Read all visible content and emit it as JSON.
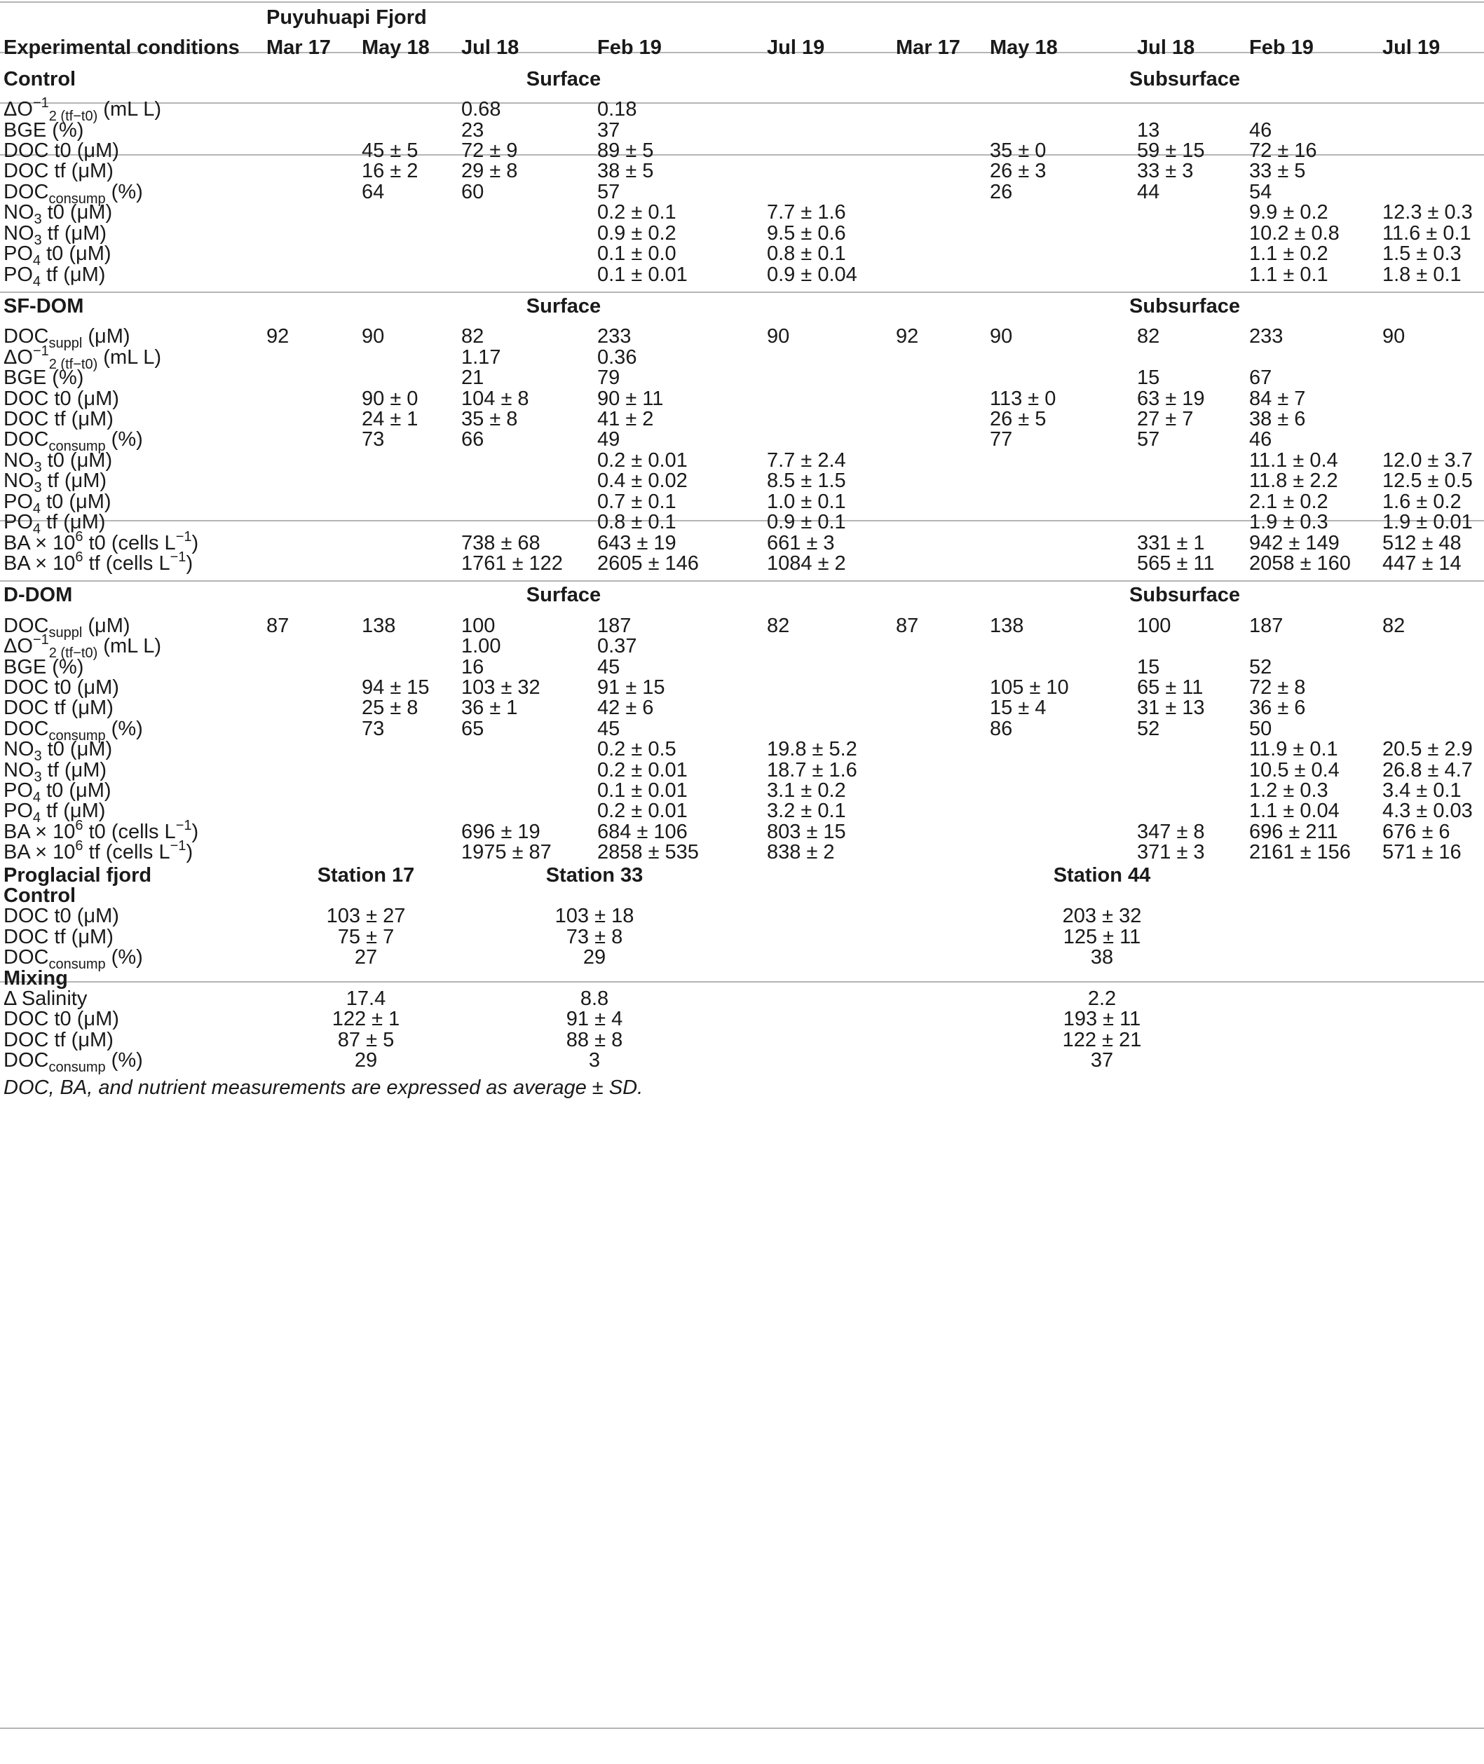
{
  "table": {
    "title": "Puyuhuapi Fjord",
    "header_label": "Experimental conditions",
    "months": [
      "Mar 17",
      "May 18",
      "Jul 18",
      "Feb 19",
      "Jul 19",
      "Mar 17",
      "May 18",
      "Jul 18",
      "Feb 19",
      "Jul 19"
    ],
    "layer_surface": "Surface",
    "layer_subsurface": "Subsurface",
    "sections": [
      {
        "name": "Control",
        "rows": [
          {
            "label": "ΔO",
            "sub": "2 (tf−t0)",
            "after": " (mL L",
            "sup": "−1",
            "tail": ")",
            "cells": [
              "",
              "",
              "0.68",
              "0.18",
              "",
              "",
              "",
              "",
              "",
              ""
            ]
          },
          {
            "label": "BGE (%)",
            "cells": [
              "",
              "",
              "23",
              "37",
              "",
              "",
              "",
              "13",
              "46",
              ""
            ]
          },
          {
            "label": "DOC t0 (μM)",
            "cells": [
              "",
              "45 ± 5",
              "72 ± 9",
              "89 ± 5",
              "",
              "",
              "35 ± 0",
              "59 ± 15",
              "72 ± 16",
              ""
            ]
          },
          {
            "label": "DOC tf (μM)",
            "cells": [
              "",
              "16 ± 2",
              "29 ± 8",
              "38 ± 5",
              "",
              "",
              "26 ± 3",
              "33 ± 3",
              "33 ± 5",
              ""
            ]
          },
          {
            "label": "DOC",
            "sub": "consump",
            "after": " (%)",
            "cells": [
              "",
              "64",
              "60",
              "57",
              "",
              "",
              "26",
              "44",
              "54",
              ""
            ]
          },
          {
            "label": "NO",
            "sub": "3",
            "after": " t0 (μM)",
            "cells": [
              "",
              "",
              "",
              "0.2 ± 0.1",
              "7.7 ± 1.6",
              "",
              "",
              "",
              "9.9 ± 0.2",
              "12.3 ± 0.3"
            ]
          },
          {
            "label": "NO",
            "sub": "3",
            "after": " tf (μM)",
            "cells": [
              "",
              "",
              "",
              "0.9 ± 0.2",
              "9.5 ± 0.6",
              "",
              "",
              "",
              "10.2 ± 0.8",
              "11.6 ± 0.1"
            ]
          },
          {
            "label": "PO",
            "sub": "4",
            "after": " t0 (μM)",
            "cells": [
              "",
              "",
              "",
              "0.1 ± 0.0",
              "0.8 ± 0.1",
              "",
              "",
              "",
              "1.1 ± 0.2",
              "1.5 ± 0.3"
            ]
          },
          {
            "label": "PO",
            "sub": "4",
            "after": " tf (μM)",
            "cells": [
              "",
              "",
              "",
              "0.1 ± 0.01",
              "0.9 ± 0.04",
              "",
              "",
              "",
              "1.1 ± 0.1",
              "1.8 ± 0.1"
            ]
          }
        ]
      },
      {
        "name": "SF-DOM",
        "rows": [
          {
            "label": "DOC",
            "sub": "suppl",
            "after": " (μM)",
            "cells": [
              "92",
              "90",
              "82",
              "233",
              "90",
              "92",
              "90",
              "82",
              "233",
              "90"
            ]
          },
          {
            "label": "ΔO",
            "sub": "2 (tf−t0)",
            "after": " (mL L",
            "sup": "−1",
            "tail": ")",
            "cells": [
              "",
              "",
              "1.17",
              "0.36",
              "",
              "",
              "",
              "",
              "",
              ""
            ]
          },
          {
            "label": "BGE (%)",
            "cells": [
              "",
              "",
              "21",
              "79",
              "",
              "",
              "",
              "15",
              "67",
              ""
            ]
          },
          {
            "label": "DOC t0 (μM)",
            "cells": [
              "",
              "90 ± 0",
              "104 ± 8",
              "90 ± 11",
              "",
              "",
              "113 ± 0",
              "63 ± 19",
              "84 ± 7",
              ""
            ]
          },
          {
            "label": "DOC tf (μM)",
            "cells": [
              "",
              "24 ± 1",
              "35 ± 8",
              "41 ± 2",
              "",
              "",
              "26 ± 5",
              "27 ± 7",
              "38 ± 6",
              ""
            ]
          },
          {
            "label": "DOC",
            "sub": "consump",
            "after": " (%)",
            "cells": [
              "",
              "73",
              "66",
              "49",
              "",
              "",
              "77",
              "57",
              "46",
              ""
            ]
          },
          {
            "label": "NO",
            "sub": "3",
            "after": " t0 (μM)",
            "cells": [
              "",
              "",
              "",
              "0.2 ± 0.01",
              "7.7 ± 2.4",
              "",
              "",
              "",
              "11.1 ± 0.4",
              "12.0 ± 3.7"
            ]
          },
          {
            "label": "NO",
            "sub": "3",
            "after": " tf (μM)",
            "cells": [
              "",
              "",
              "",
              "0.4 ± 0.02",
              "8.5 ± 1.5",
              "",
              "",
              "",
              "11.8 ± 2.2",
              "12.5 ± 0.5"
            ]
          },
          {
            "label": "PO",
            "sub": "4",
            "after": " t0 (μM)",
            "cells": [
              "",
              "",
              "",
              "0.7 ± 0.1",
              "1.0 ± 0.1",
              "",
              "",
              "",
              "2.1 ± 0.2",
              "1.6 ± 0.2"
            ]
          },
          {
            "label": "PO",
            "sub": "4",
            "after": " tf (μM)",
            "cells": [
              "",
              "",
              "",
              "0.8 ± 0.1",
              "0.9 ± 0.1",
              "",
              "",
              "",
              "1.9 ± 0.3",
              "1.9 ± 0.01"
            ]
          },
          {
            "label": "BA × 10",
            "sup": "6",
            "after": " t0 (cells L",
            "sup2": "−1",
            "tail": ")",
            "cells": [
              "",
              "",
              "738 ± 68",
              "643 ± 19",
              "661 ± 3",
              "",
              "",
              "331 ± 1",
              "942 ± 149",
              "512 ± 48"
            ]
          },
          {
            "label": "BA × 10",
            "sup": "6",
            "after": " tf (cells L",
            "sup2": "−1",
            "tail": ")",
            "cells": [
              "",
              "",
              "1761 ± 122",
              "2605 ± 146",
              "1084 ± 2",
              "",
              "",
              "565 ± 11",
              "2058 ± 160",
              "447 ± 14"
            ]
          }
        ]
      },
      {
        "name": "D-DOM",
        "rows": [
          {
            "label": "DOC",
            "sub": "suppl",
            "after": " (μM)",
            "cells": [
              "87",
              "138",
              "100",
              "187",
              "82",
              "87",
              "138",
              "100",
              "187",
              "82"
            ]
          },
          {
            "label": "ΔO",
            "sub": "2 (tf−t0)",
            "after": " (mL L",
            "sup": "−1",
            "tail": ")",
            "cells": [
              "",
              "",
              "1.00",
              "0.37",
              "",
              "",
              "",
              "",
              "",
              ""
            ]
          },
          {
            "label": "BGE (%)",
            "cells": [
              "",
              "",
              "16",
              "45",
              "",
              "",
              "",
              "15",
              "52",
              ""
            ]
          },
          {
            "label": "DOC t0 (μM)",
            "cells": [
              "",
              "94 ± 15",
              "103 ± 32",
              "91 ± 15",
              "",
              "",
              "105 ± 10",
              "65 ± 11",
              "72 ± 8",
              ""
            ]
          },
          {
            "label": "DOC tf (μM)",
            "cells": [
              "",
              "25 ± 8",
              "36 ± 1",
              "42 ± 6",
              "",
              "",
              "15 ± 4",
              "31 ± 13",
              "36 ± 6",
              ""
            ]
          },
          {
            "label": "DOC",
            "sub": "consump",
            "after": " (%)",
            "cells": [
              "",
              "73",
              "65",
              "45",
              "",
              "",
              "86",
              "52",
              "50",
              ""
            ]
          },
          {
            "label": "NO",
            "sub": "3",
            "after": " t0 (μM)",
            "cells": [
              "",
              "",
              "",
              "0.2 ± 0.5",
              "19.8 ± 5.2",
              "",
              "",
              "",
              "11.9 ± 0.1",
              "20.5 ± 2.9"
            ]
          },
          {
            "label": "NO",
            "sub": "3",
            "after": " tf (μM)",
            "cells": [
              "",
              "",
              "",
              "0.2 ± 0.01",
              "18.7 ± 1.6",
              "",
              "",
              "",
              "10.5 ± 0.4",
              "26.8 ± 4.7"
            ]
          },
          {
            "label": "PO",
            "sub": "4",
            "after": " t0 (μM)",
            "cells": [
              "",
              "",
              "",
              "0.1 ± 0.01",
              "3.1 ± 0.2",
              "",
              "",
              "",
              "1.2 ± 0.3",
              "3.4 ± 0.1"
            ]
          },
          {
            "label": "PO",
            "sub": "4",
            "after": " tf (μM)",
            "cells": [
              "",
              "",
              "",
              "0.2 ± 0.01",
              "3.2 ± 0.1",
              "",
              "",
              "",
              "1.1 ± 0.04",
              "4.3 ± 0.03"
            ]
          },
          {
            "label": "BA × 10",
            "sup": "6",
            "after": " t0 (cells L",
            "sup2": "−1",
            "tail": ")",
            "cells": [
              "",
              "",
              "696 ± 19",
              "684 ± 106",
              "803 ± 15",
              "",
              "",
              "347 ± 8",
              "696 ± 211",
              "676 ± 6"
            ]
          },
          {
            "label": "BA × 10",
            "sup": "6",
            "after": " tf (cells L",
            "sup2": "−1",
            "tail": ")",
            "cells": [
              "",
              "",
              "1975 ± 87",
              "2858 ± 535",
              "838 ± 2",
              "",
              "",
              "371 ± 3",
              "2161 ± 156",
              "571 ± 16"
            ]
          }
        ]
      }
    ],
    "proglacial": {
      "title": "Proglacial fjord",
      "stations": [
        "Station 17",
        "Station 33",
        "Station 44"
      ],
      "groups": [
        {
          "name": "Control",
          "rows": [
            {
              "label": "DOC t0 (μM)",
              "cells": [
                "103 ± 27",
                "103 ± 18",
                "203 ± 32"
              ]
            },
            {
              "label": "DOC tf (μM)",
              "cells": [
                "75 ± 7",
                "73 ± 8",
                "125 ± 11"
              ]
            },
            {
              "label": "DOC",
              "sub": "consump",
              "after": " (%)",
              "cells": [
                "27",
                "29",
                "38"
              ]
            }
          ]
        },
        {
          "name": "Mixing",
          "rows": [
            {
              "label": "Δ Salinity",
              "cells": [
                "17.4",
                "8.8",
                "2.2"
              ]
            },
            {
              "label": "DOC t0 (μM)",
              "cells": [
                "122 ± 1",
                "91 ± 4",
                "193 ± 11"
              ]
            },
            {
              "label": "DOC tf (μM)",
              "cells": [
                "87 ± 5",
                "88 ± 8",
                "122 ± 21"
              ]
            },
            {
              "label": "DOC",
              "sub": "consump",
              "after": " (%)",
              "cells": [
                "29",
                "3",
                "37"
              ]
            }
          ]
        }
      ]
    },
    "footnote": "DOC, BA, and nutrient measurements are expressed as average ± SD."
  }
}
